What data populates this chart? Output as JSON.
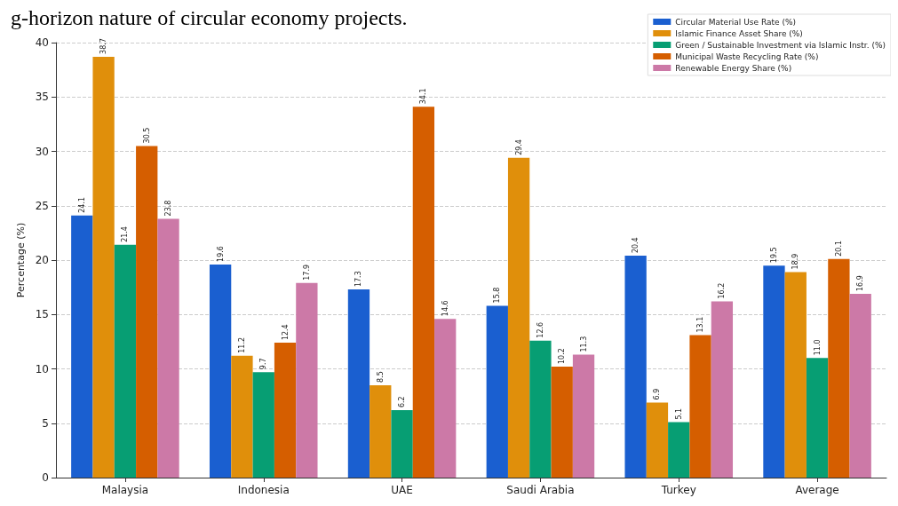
{
  "chart_data": {
    "type": "bar",
    "annotations": [
      "g-horizon nature of circular economy projects."
    ],
    "ylabel": "Percentage (%)",
    "categories": [
      "Malaysia",
      "Indonesia",
      "UAE",
      "Saudi Arabia",
      "Turkey",
      "Average"
    ],
    "series": [
      {
        "name": "Circular Material Use Rate (%)",
        "color": "#1a5fd0",
        "values": [
          24.1,
          19.6,
          17.3,
          15.8,
          20.4,
          19.5
        ],
        "value_labels": [
          "24.1",
          "19.6",
          "17.3",
          "15.8",
          "20.4",
          "19.5"
        ]
      },
      {
        "name": "Islamic Finance Asset Share (%)",
        "color": "#e08f0b",
        "values": [
          38.7,
          11.2,
          8.5,
          29.4,
          6.9,
          18.9
        ],
        "value_labels": [
          "38.7",
          "11.2",
          "8.5",
          "29.4",
          "6.9",
          "18.9"
        ]
      },
      {
        "name": "Green / Sustainable Investment via Islamic Instr. (%)",
        "color": "#079e73",
        "values": [
          21.4,
          9.7,
          6.2,
          12.6,
          5.1,
          11.0
        ],
        "value_labels": [
          "21.4",
          "9.7",
          "6.2",
          "12.6",
          "5.1",
          "11.0"
        ]
      },
      {
        "name": "Municipal Waste Recycling Rate (%)",
        "color": "#d55e00",
        "values": [
          30.5,
          12.4,
          34.1,
          10.2,
          13.1,
          20.1
        ],
        "value_labels": [
          "30.5",
          "12.4",
          "34.1",
          "10.2",
          "13.1",
          "20.1"
        ]
      },
      {
        "name": "Renewable Energy Share (%)",
        "color": "#cc79a7",
        "values": [
          23.8,
          17.9,
          14.6,
          11.3,
          16.2,
          16.9
        ],
        "value_labels": [
          "23.8",
          "17.9",
          "14.6",
          "11.3",
          "16.2",
          "16.9"
        ]
      }
    ],
    "ylim": [
      0,
      40
    ],
    "yticks": [
      0,
      5,
      10,
      15,
      20,
      25,
      30,
      35,
      40
    ],
    "grid": "y",
    "legend": "top right"
  }
}
